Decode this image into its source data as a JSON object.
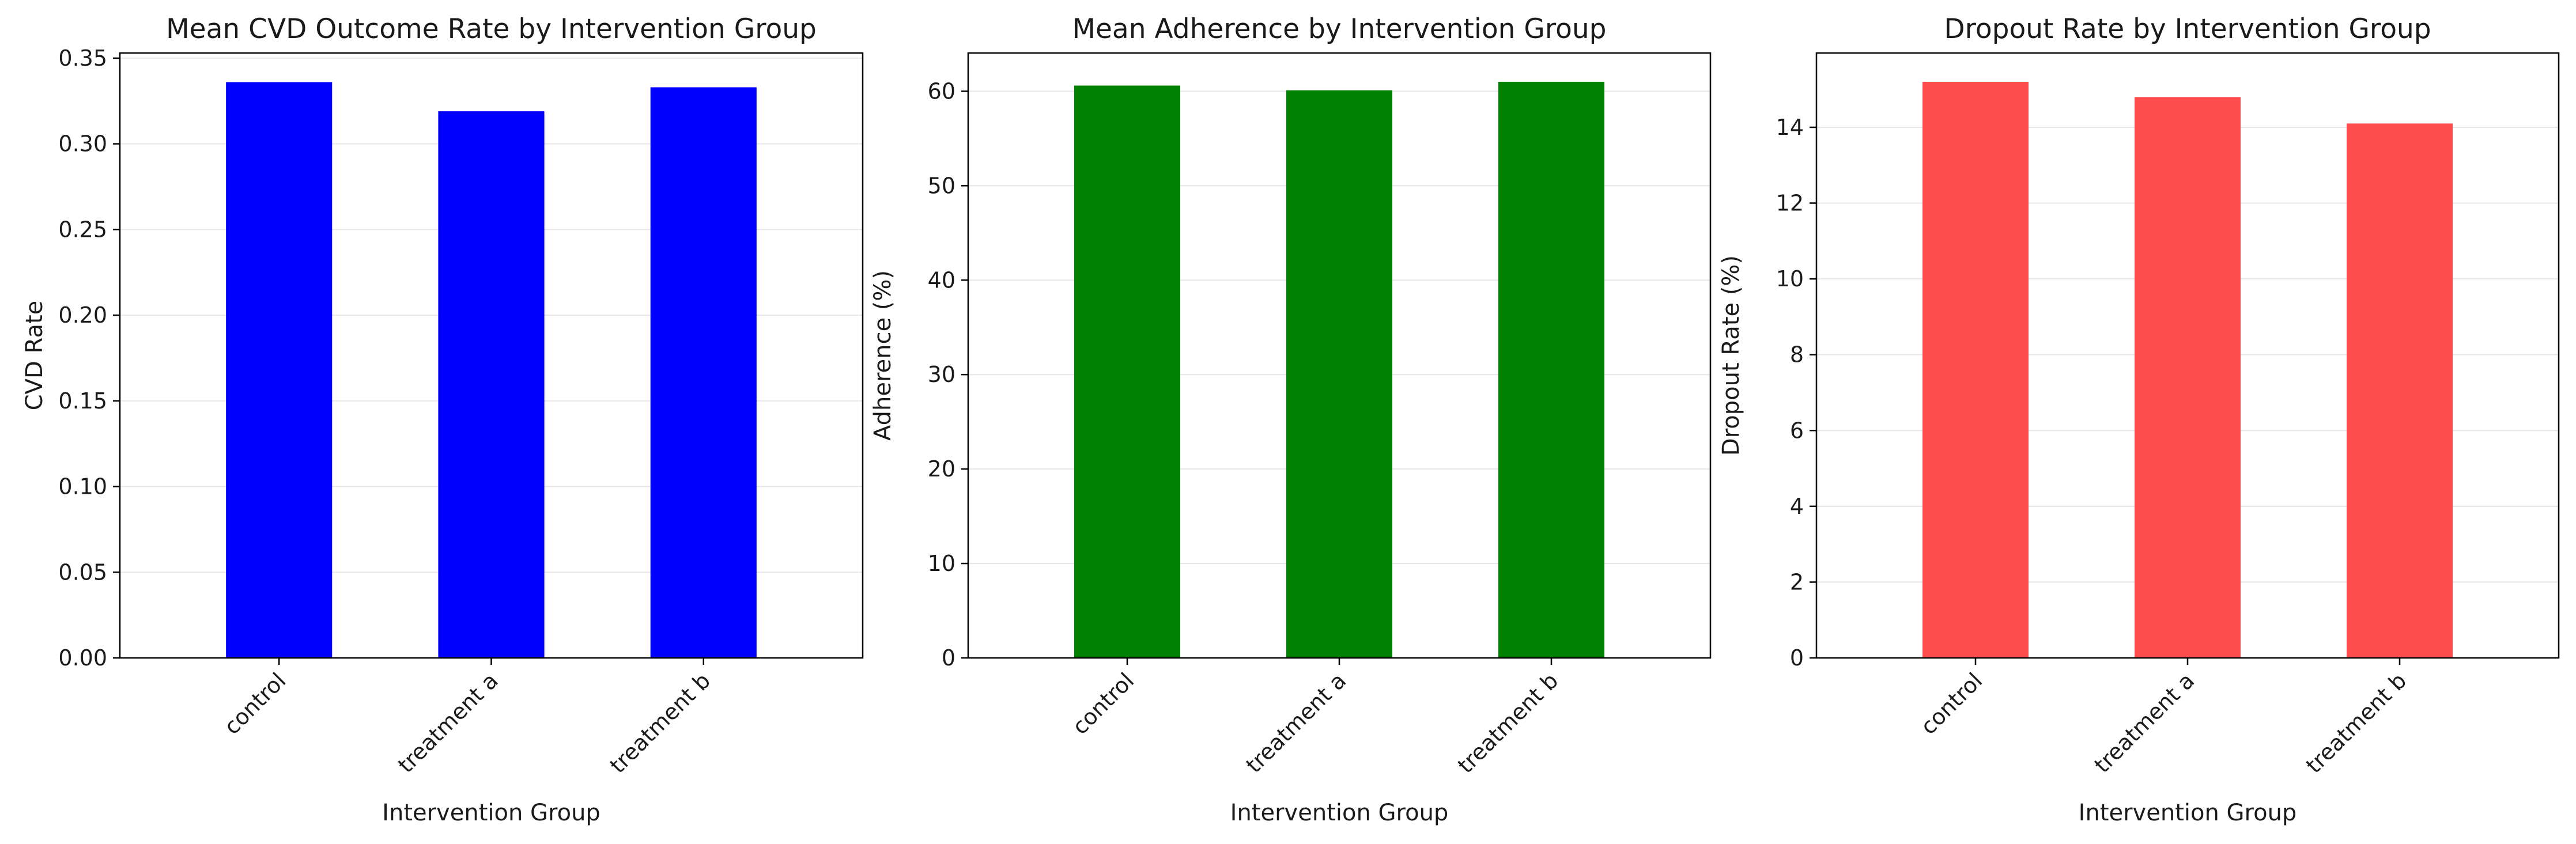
{
  "chart_data": [
    {
      "type": "bar",
      "title": "Mean CVD Outcome Rate by Intervention Group",
      "xlabel": "Intervention Group",
      "ylabel": "CVD Rate",
      "categories": [
        "control",
        "treatment a",
        "treatment b"
      ],
      "values": [
        0.336,
        0.319,
        0.333
      ],
      "ylim": [
        0,
        0.353
      ],
      "yticks": [
        0.0,
        0.05,
        0.1,
        0.15,
        0.2,
        0.25,
        0.3,
        0.35
      ],
      "ytick_labels": [
        "0.00",
        "0.05",
        "0.10",
        "0.15",
        "0.20",
        "0.25",
        "0.30",
        "0.35"
      ],
      "color": "#0000ff",
      "grid": "y"
    },
    {
      "type": "bar",
      "title": "Mean Adherence by Intervention Group",
      "xlabel": "Intervention Group",
      "ylabel": "Adherence (%)",
      "categories": [
        "control",
        "treatment a",
        "treatment b"
      ],
      "values": [
        60.6,
        60.1,
        61.0
      ],
      "ylim": [
        0,
        64.05
      ],
      "yticks": [
        0,
        10,
        20,
        30,
        40,
        50,
        60
      ],
      "ytick_labels": [
        "0",
        "10",
        "20",
        "30",
        "40",
        "50",
        "60"
      ],
      "color": "#008000",
      "grid": "y"
    },
    {
      "type": "bar",
      "title": "Dropout Rate by Intervention Group",
      "xlabel": "Intervention Group",
      "ylabel": "Dropout Rate (%)",
      "categories": [
        "control",
        "treatment a",
        "treatment b"
      ],
      "values": [
        15.2,
        14.8,
        14.1
      ],
      "ylim": [
        0,
        15.96
      ],
      "yticks": [
        0,
        2,
        4,
        6,
        8,
        10,
        12,
        14
      ],
      "ytick_labels": [
        "0",
        "2",
        "4",
        "6",
        "8",
        "10",
        "12",
        "14"
      ],
      "color": "#ff4c4c",
      "grid": "y"
    }
  ]
}
